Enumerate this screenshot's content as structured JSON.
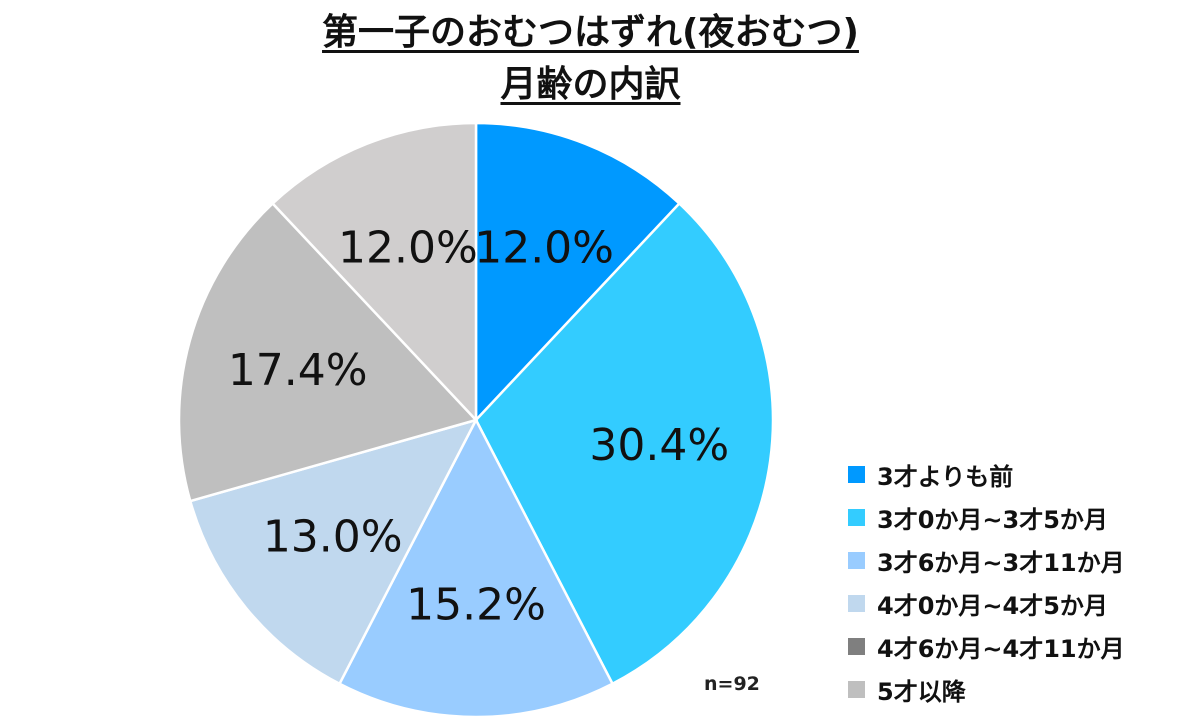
{
  "chart_data": {
    "type": "pie",
    "title_line1": "第一子のおむつはずれ(夜おむつ)",
    "title_line2": "月齢の内訳",
    "slices": [
      {
        "label": "3才よりも前",
        "value": 12.0,
        "display": "12.0%",
        "color": "#0099ff"
      },
      {
        "label": "3才0か月~3才5か月",
        "value": 30.4,
        "display": "30.4%",
        "color": "#33ccff"
      },
      {
        "label": "3才6か月~3才11か月",
        "value": 15.2,
        "display": "15.2%",
        "color": "#99ccff"
      },
      {
        "label": "4才0か月~4才5か月",
        "value": 13.0,
        "display": "13.0%",
        "color": "#c0d8ee"
      },
      {
        "label": "4才6か月~4才11か月",
        "value": 17.4,
        "display": "17.4%",
        "color": "#bfbfbf"
      },
      {
        "label": "5才以降",
        "value": 12.0,
        "display": "12.0%",
        "color": "#d0cece"
      }
    ],
    "legend_colors": [
      "#0099ff",
      "#33ccff",
      "#99ccff",
      "#c0d8ee",
      "#7f7f7f",
      "#bfbfbf"
    ],
    "start_angle": "12 o'clock",
    "direction": "clockwise",
    "legend_position": "bottom-right",
    "note": "n=92"
  }
}
